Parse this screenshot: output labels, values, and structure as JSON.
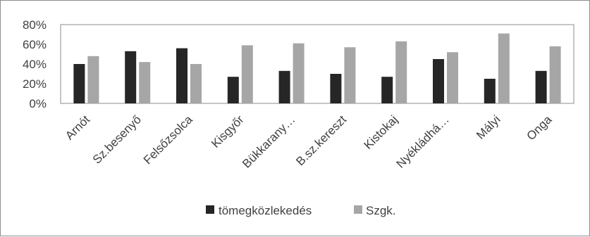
{
  "chart_data": {
    "type": "bar",
    "categories": [
      "Arnót",
      "Sz.besenyő",
      "Felsőzsolca",
      "Kisgyőr",
      "Bükkarany…",
      "B.sz.kereszt",
      "Kistokaj",
      "Nyékládhá…",
      "Mályi",
      "Onga"
    ],
    "series": [
      {
        "name": "tömegközlekedés",
        "color": "#262626",
        "values": [
          40,
          53,
          56,
          27,
          33,
          30,
          27,
          45,
          25,
          33
        ]
      },
      {
        "name": "Szgk.",
        "color": "#a6a6a6",
        "values": [
          48,
          42,
          40,
          59,
          61,
          57,
          63,
          52,
          71,
          58
        ]
      }
    ],
    "y_ticks": [
      "0%",
      "20%",
      "40%",
      "60%",
      "80%"
    ],
    "ylim": [
      0,
      80
    ],
    "grid": false,
    "legend_position": "bottom",
    "title": "",
    "xlabel": "",
    "ylabel": ""
  }
}
